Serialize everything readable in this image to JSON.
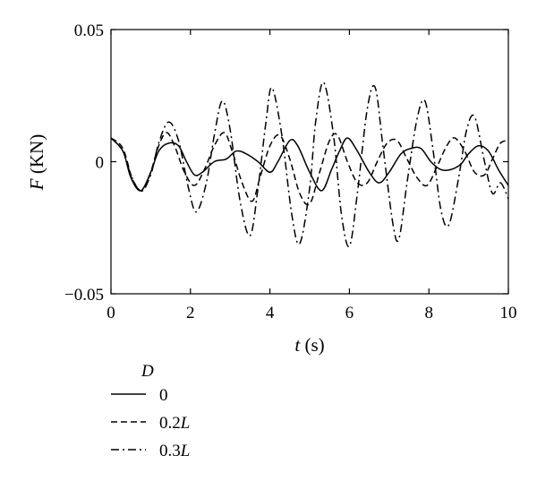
{
  "chart_data": {
    "type": "line",
    "title": "",
    "xlabel_var": "t",
    "xlabel_unit": " (s)",
    "ylabel_var": "F",
    "ylabel_unit": " (KN)",
    "xlim": [
      0,
      10
    ],
    "ylim": [
      -0.05,
      0.05
    ],
    "x_ticks": [
      0,
      2,
      4,
      6,
      8,
      10
    ],
    "x_tick_labels": [
      "0",
      "2",
      "4",
      "6",
      "8",
      "10"
    ],
    "y_ticks": [
      -0.05,
      0,
      0.05
    ],
    "y_tick_labels": [
      "−0.05",
      "0",
      "0.05"
    ],
    "grid": false,
    "legend_title": "D",
    "legend_position": "bottom-left, below plot",
    "series": [
      {
        "name": "0",
        "dash": "solid",
        "points": [
          [
            0,
            0.009
          ],
          [
            0.3,
            0.004
          ],
          [
            0.5,
            -0.006
          ],
          [
            0.75,
            -0.011
          ],
          [
            1.0,
            -0.004
          ],
          [
            1.2,
            0.004
          ],
          [
            1.45,
            0.007
          ],
          [
            1.7,
            0.006
          ],
          [
            1.9,
            0.0
          ],
          [
            2.1,
            -0.005
          ],
          [
            2.3,
            -0.004
          ],
          [
            2.6,
            0.0
          ],
          [
            2.9,
            0.001
          ],
          [
            3.15,
            0.004
          ],
          [
            3.4,
            0.003
          ],
          [
            3.7,
            0.0
          ],
          [
            4.0,
            -0.004
          ],
          [
            4.2,
            0.0
          ],
          [
            4.5,
            0.008
          ],
          [
            4.7,
            0.006
          ],
          [
            5.0,
            -0.004
          ],
          [
            5.3,
            -0.011
          ],
          [
            5.55,
            -0.003
          ],
          [
            5.75,
            0.004
          ],
          [
            5.95,
            0.009
          ],
          [
            6.2,
            0.004
          ],
          [
            6.5,
            -0.004
          ],
          [
            6.75,
            -0.008
          ],
          [
            7.0,
            -0.004
          ],
          [
            7.3,
            0.003
          ],
          [
            7.55,
            0.005
          ],
          [
            7.8,
            0.005
          ],
          [
            8.05,
            0.0
          ],
          [
            8.3,
            -0.003
          ],
          [
            8.55,
            -0.003
          ],
          [
            8.8,
            -0.001
          ],
          [
            9.0,
            0.003
          ],
          [
            9.25,
            0.006
          ],
          [
            9.5,
            0.004
          ],
          [
            9.75,
            -0.003
          ],
          [
            10.0,
            -0.009
          ]
        ]
      },
      {
        "name": "0.2L",
        "dash": "dashed",
        "points": [
          [
            0,
            0.009
          ],
          [
            0.3,
            0.005
          ],
          [
            0.55,
            -0.007
          ],
          [
            0.8,
            -0.011
          ],
          [
            1.0,
            -0.004
          ],
          [
            1.2,
            0.006
          ],
          [
            1.4,
            0.011
          ],
          [
            1.6,
            0.006
          ],
          [
            1.85,
            -0.004
          ],
          [
            2.1,
            -0.009
          ],
          [
            2.35,
            -0.003
          ],
          [
            2.6,
            0.006
          ],
          [
            2.85,
            0.011
          ],
          [
            3.05,
            0.004
          ],
          [
            3.3,
            -0.008
          ],
          [
            3.55,
            -0.015
          ],
          [
            3.75,
            -0.006
          ],
          [
            4.0,
            0.006
          ],
          [
            4.25,
            0.01
          ],
          [
            4.5,
            0.001
          ],
          [
            4.75,
            -0.012
          ],
          [
            5.0,
            -0.016
          ],
          [
            5.25,
            -0.004
          ],
          [
            5.5,
            0.008
          ],
          [
            5.7,
            0.01
          ],
          [
            5.95,
            0.0
          ],
          [
            6.2,
            -0.008
          ],
          [
            6.45,
            -0.008
          ],
          [
            6.7,
            0.0
          ],
          [
            6.95,
            0.007
          ],
          [
            7.2,
            0.008
          ],
          [
            7.45,
            0.001
          ],
          [
            7.7,
            -0.006
          ],
          [
            7.95,
            -0.009
          ],
          [
            8.2,
            -0.002
          ],
          [
            8.45,
            0.006
          ],
          [
            8.65,
            0.009
          ],
          [
            8.9,
            0.004
          ],
          [
            9.15,
            -0.004
          ],
          [
            9.4,
            -0.005
          ],
          [
            9.6,
            0.001
          ],
          [
            9.8,
            0.007
          ],
          [
            10.0,
            0.008
          ]
        ]
      },
      {
        "name": "0.3L",
        "dash": "dashdot",
        "points": [
          [
            0,
            0.009
          ],
          [
            0.3,
            0.004
          ],
          [
            0.5,
            -0.005
          ],
          [
            0.75,
            -0.011
          ],
          [
            1.0,
            -0.005
          ],
          [
            1.2,
            0.007
          ],
          [
            1.45,
            0.015
          ],
          [
            1.7,
            0.008
          ],
          [
            1.95,
            -0.01
          ],
          [
            2.15,
            -0.019
          ],
          [
            2.4,
            -0.008
          ],
          [
            2.6,
            0.01
          ],
          [
            2.8,
            0.023
          ],
          [
            3.0,
            0.012
          ],
          [
            3.25,
            -0.015
          ],
          [
            3.5,
            -0.028
          ],
          [
            3.7,
            -0.01
          ],
          [
            3.9,
            0.015
          ],
          [
            4.05,
            0.028
          ],
          [
            4.3,
            0.01
          ],
          [
            4.55,
            -0.02
          ],
          [
            4.75,
            -0.031
          ],
          [
            5.0,
            -0.01
          ],
          [
            5.15,
            0.015
          ],
          [
            5.35,
            0.03
          ],
          [
            5.6,
            0.01
          ],
          [
            5.8,
            -0.02
          ],
          [
            6.0,
            -0.032
          ],
          [
            6.2,
            -0.012
          ],
          [
            6.45,
            0.02
          ],
          [
            6.65,
            0.028
          ],
          [
            6.85,
            0.005
          ],
          [
            7.1,
            -0.024
          ],
          [
            7.25,
            -0.029
          ],
          [
            7.45,
            -0.008
          ],
          [
            7.7,
            0.016
          ],
          [
            7.9,
            0.023
          ],
          [
            8.1,
            0.005
          ],
          [
            8.3,
            -0.018
          ],
          [
            8.5,
            -0.024
          ],
          [
            8.75,
            -0.006
          ],
          [
            8.95,
            0.012
          ],
          [
            9.15,
            0.017
          ],
          [
            9.4,
            0.0
          ],
          [
            9.6,
            -0.012
          ],
          [
            9.8,
            -0.008
          ],
          [
            10.0,
            -0.014
          ]
        ]
      }
    ]
  }
}
